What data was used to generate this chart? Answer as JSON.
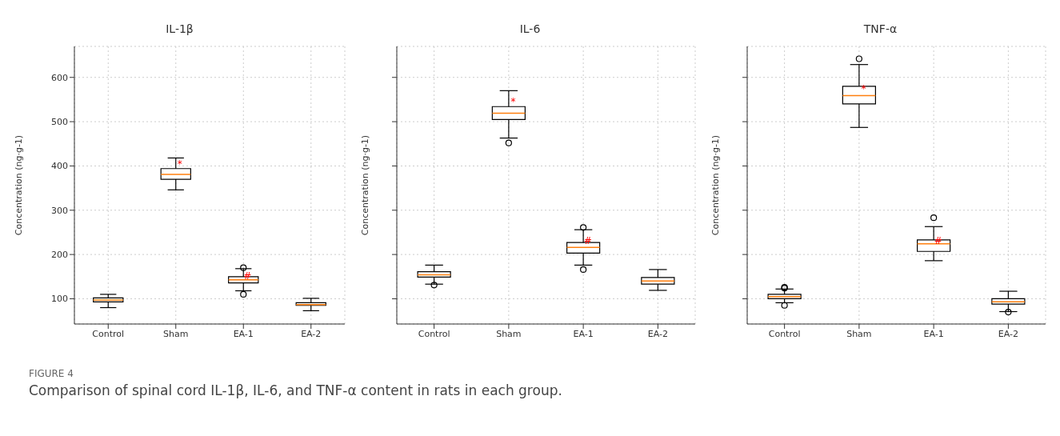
{
  "chart_data": [
    {
      "type": "box",
      "title": "IL-1β",
      "ylabel": "Concentration (ng·g-1)",
      "categories": [
        "Control",
        "Sham",
        "EA-1",
        "EA-2"
      ],
      "ylim": [
        43,
        670
      ],
      "yticks": [
        100,
        200,
        300,
        400,
        500,
        600
      ],
      "grid": true,
      "boxes": [
        {
          "low": 80,
          "q1": 93,
          "median": 97,
          "q3": 102,
          "high": 110
        },
        {
          "low": 346,
          "q1": 370,
          "median": 381,
          "q3": 394,
          "high": 418
        },
        {
          "low": 118,
          "q1": 136,
          "median": 143,
          "q3": 150,
          "high": 168,
          "outliers": [
            170,
            110
          ]
        },
        {
          "low": 73,
          "q1": 85,
          "median": 87,
          "q3": 91,
          "high": 101
        }
      ],
      "annotations": [
        {
          "text": "*",
          "x": "Sham",
          "y": 405
        },
        {
          "text": "#",
          "x": "EA-1",
          "y": 151
        },
        "FIGURE 4",
        "Comparison of spinal cord IL-1β, IL-6, and TNF-α content in rats in each group."
      ]
    },
    {
      "type": "box",
      "title": "IL-6",
      "ylabel": "Concentration (ng·g-1)",
      "categories": [
        "Control",
        "Sham",
        "EA-1",
        "EA-2"
      ],
      "ylim": [
        43,
        670
      ],
      "yticks": [
        100,
        200,
        300,
        400,
        500,
        600
      ],
      "grid": true,
      "tick_labels": "x",
      "boxes": [
        {
          "low": 133,
          "q1": 149,
          "median": 154,
          "q3": 161,
          "high": 176,
          "outliers": [
            131
          ]
        },
        {
          "low": 463,
          "q1": 505,
          "median": 519,
          "q3": 534,
          "high": 570,
          "outliers": [
            452
          ]
        },
        {
          "low": 176,
          "q1": 203,
          "median": 216,
          "q3": 227,
          "high": 256,
          "outliers": [
            261,
            166
          ]
        },
        {
          "low": 119,
          "q1": 133,
          "median": 140,
          "q3": 148,
          "high": 166
        }
      ],
      "annotations": [
        {
          "text": "*",
          "x": "Sham",
          "y": 545
        },
        {
          "text": "#",
          "x": "EA-1",
          "y": 232
        }
      ]
    },
    {
      "type": "box",
      "title": "TNF-α",
      "ylabel": "Concentration (ng·g-1)",
      "categories": [
        "Control",
        "Sham",
        "EA-1",
        "EA-2"
      ],
      "ylim": [
        43,
        670
      ],
      "yticks": [
        100,
        200,
        300,
        400,
        500,
        600
      ],
      "grid": true,
      "tick_labels": "x",
      "boxes": [
        {
          "low": 91,
          "q1": 100,
          "median": 105,
          "q3": 110,
          "high": 122,
          "outliers": [
            126,
            124,
            85
          ]
        },
        {
          "low": 487,
          "q1": 540,
          "median": 559,
          "q3": 580,
          "high": 629,
          "outliers": [
            642
          ]
        },
        {
          "low": 186,
          "q1": 207,
          "median": 224,
          "q3": 233,
          "high": 263,
          "outliers": [
            283
          ]
        },
        {
          "low": 71,
          "q1": 88,
          "median": 93,
          "q3": 100,
          "high": 117,
          "outliers": [
            70
          ]
        }
      ],
      "annotations": [
        {
          "text": "*",
          "x": "Sham",
          "y": 575
        },
        {
          "text": "#",
          "x": "EA-1",
          "y": 232
        }
      ]
    }
  ]
}
